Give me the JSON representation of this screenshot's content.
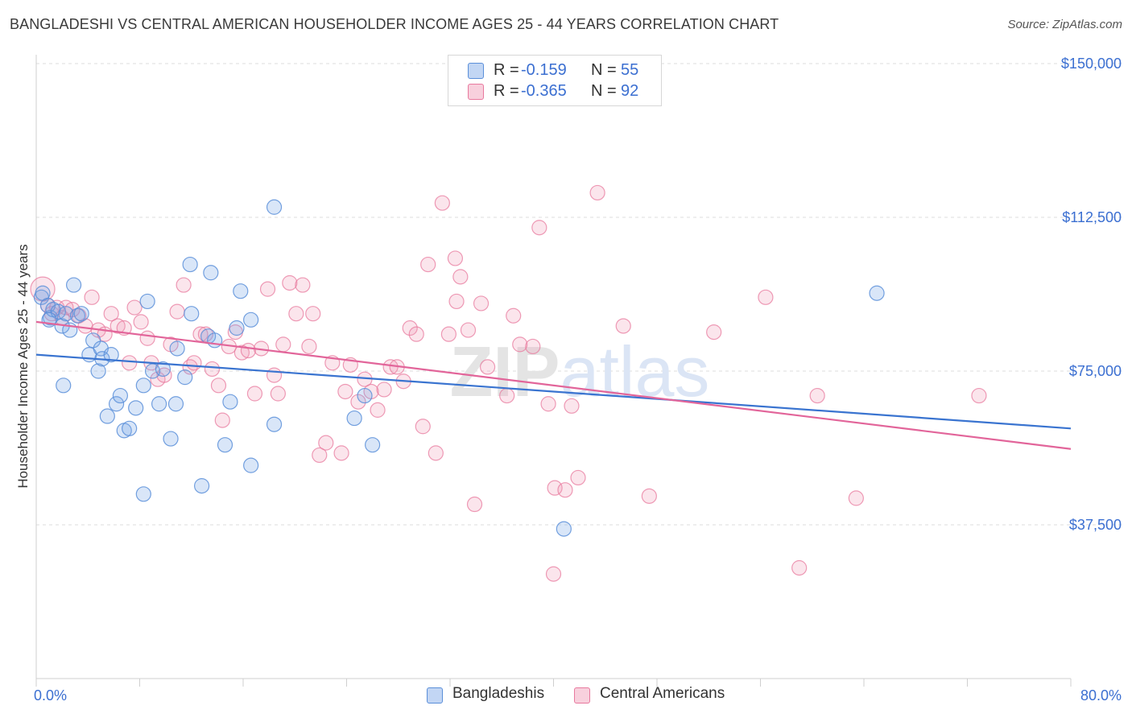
{
  "title": "BANGLADESHI VS CENTRAL AMERICAN HOUSEHOLDER INCOME AGES 25 - 44 YEARS CORRELATION CHART",
  "source": "Source: ZipAtlas.com",
  "watermark": "ZIPatlas",
  "colors": {
    "blue": "#5b8fd9",
    "blue_fill": "rgba(120,165,230,0.28)",
    "blue_line": "#3a74d0",
    "pink": "#e8799e",
    "pink_fill": "rgba(240,150,180,0.25)",
    "pink_line": "#e2659a",
    "axis_label_blue": "#3b6fd1",
    "grid": "#dddddd"
  },
  "legend": {
    "rows": [
      {
        "r_label": "R =",
        "r_value": "-0.159",
        "n_label": "N =",
        "n_value": "55"
      },
      {
        "r_label": "R =",
        "r_value": "-0.365",
        "n_label": "N =",
        "n_value": "92"
      }
    ]
  },
  "bottom_legend": {
    "items": [
      "Bangladeshis",
      "Central Americans"
    ]
  },
  "chart_data": {
    "type": "scatter",
    "xlabel": "",
    "ylabel": "Householder Income Ages 25 - 44 years",
    "xlim": [
      0,
      80
    ],
    "ylim": [
      0,
      155000
    ],
    "x_tick_labels": [
      "0.0%",
      "80.0%"
    ],
    "y_ticks": [
      37500,
      75000,
      112500,
      150000
    ],
    "y_tick_labels": [
      "$37,500",
      "$75,000",
      "$112,500",
      "$150,000"
    ],
    "grid": true,
    "legend_position": "top-center",
    "series": [
      {
        "name": "Bangladeshis",
        "trend": {
          "x": [
            0,
            80
          ],
          "y": [
            79000,
            61000
          ]
        },
        "points": [
          [
            0.4,
            93000
          ],
          [
            0.9,
            91000
          ],
          [
            1.1,
            88000
          ],
          [
            1.3,
            90000
          ],
          [
            1.7,
            89500
          ],
          [
            2.0,
            86000
          ],
          [
            2.3,
            89000
          ],
          [
            2.6,
            85000
          ],
          [
            2.9,
            96000
          ],
          [
            3.2,
            88500
          ],
          [
            3.5,
            89000
          ],
          [
            4.1,
            79000
          ],
          [
            4.4,
            82500
          ],
          [
            4.8,
            75000
          ],
          [
            5.0,
            80500
          ],
          [
            5.1,
            78000
          ],
          [
            5.8,
            79000
          ],
          [
            2.1,
            71500
          ],
          [
            5.5,
            64000
          ],
          [
            6.2,
            67000
          ],
          [
            6.5,
            69000
          ],
          [
            6.8,
            60500
          ],
          [
            7.2,
            61000
          ],
          [
            7.7,
            66000
          ],
          [
            8.3,
            71500
          ],
          [
            8.3,
            45000
          ],
          [
            8.6,
            92000
          ],
          [
            9.0,
            75000
          ],
          [
            9.5,
            67000
          ],
          [
            9.8,
            75500
          ],
          [
            10.4,
            58500
          ],
          [
            10.8,
            67000
          ],
          [
            10.9,
            80500
          ],
          [
            11.5,
            73500
          ],
          [
            11.9,
            101000
          ],
          [
            12.0,
            89000
          ],
          [
            12.8,
            47000
          ],
          [
            13.3,
            83500
          ],
          [
            13.5,
            99000
          ],
          [
            13.8,
            82500
          ],
          [
            14.6,
            57000
          ],
          [
            15.0,
            67500
          ],
          [
            15.5,
            85500
          ],
          [
            15.8,
            94500
          ],
          [
            16.6,
            87500
          ],
          [
            16.6,
            52000
          ],
          [
            18.4,
            115000
          ],
          [
            18.4,
            62000
          ],
          [
            24.6,
            63500
          ],
          [
            25.4,
            69000
          ],
          [
            26.0,
            57000
          ],
          [
            40.8,
            36500
          ],
          [
            65.0,
            94000
          ],
          [
            0.5,
            94000
          ],
          [
            1.0,
            87500
          ]
        ]
      },
      {
        "name": "Central Americans",
        "trend": {
          "x": [
            0,
            80
          ],
          "y": [
            87000,
            56000
          ]
        },
        "points": [
          [
            0.5,
            95000
          ],
          [
            0.9,
            91000
          ],
          [
            1.2,
            89000
          ],
          [
            1.6,
            90500
          ],
          [
            2.0,
            88000
          ],
          [
            2.3,
            90500
          ],
          [
            2.8,
            90000
          ],
          [
            3.3,
            88500
          ],
          [
            3.8,
            86000
          ],
          [
            4.3,
            93000
          ],
          [
            4.8,
            85000
          ],
          [
            5.3,
            84000
          ],
          [
            5.8,
            89000
          ],
          [
            6.3,
            86000
          ],
          [
            6.8,
            85500
          ],
          [
            7.2,
            77000
          ],
          [
            7.6,
            90500
          ],
          [
            8.1,
            87000
          ],
          [
            8.6,
            83000
          ],
          [
            8.9,
            77000
          ],
          [
            9.4,
            73000
          ],
          [
            9.9,
            74000
          ],
          [
            10.4,
            81500
          ],
          [
            10.9,
            89500
          ],
          [
            11.4,
            96000
          ],
          [
            11.9,
            76000
          ],
          [
            12.2,
            77000
          ],
          [
            12.7,
            84000
          ],
          [
            13.1,
            84000
          ],
          [
            13.6,
            75500
          ],
          [
            14.1,
            71500
          ],
          [
            14.4,
            63000
          ],
          [
            14.9,
            81000
          ],
          [
            15.4,
            84500
          ],
          [
            15.9,
            79500
          ],
          [
            16.4,
            80000
          ],
          [
            16.9,
            69500
          ],
          [
            17.4,
            80500
          ],
          [
            17.9,
            95000
          ],
          [
            18.4,
            74000
          ],
          [
            18.7,
            69500
          ],
          [
            19.1,
            81500
          ],
          [
            19.6,
            96500
          ],
          [
            20.1,
            89000
          ],
          [
            20.6,
            96000
          ],
          [
            21.1,
            81000
          ],
          [
            21.4,
            89000
          ],
          [
            21.9,
            54500
          ],
          [
            22.4,
            57500
          ],
          [
            22.9,
            77000
          ],
          [
            23.6,
            55000
          ],
          [
            23.9,
            70000
          ],
          [
            24.3,
            76500
          ],
          [
            24.9,
            67500
          ],
          [
            25.4,
            73000
          ],
          [
            25.9,
            70000
          ],
          [
            26.4,
            65500
          ],
          [
            26.9,
            70500
          ],
          [
            27.4,
            76000
          ],
          [
            27.9,
            76000
          ],
          [
            28.4,
            72500
          ],
          [
            28.9,
            85500
          ],
          [
            29.4,
            84000
          ],
          [
            29.9,
            61500
          ],
          [
            30.3,
            101000
          ],
          [
            30.9,
            55000
          ],
          [
            31.4,
            116000
          ],
          [
            31.9,
            84000
          ],
          [
            32.4,
            102500
          ],
          [
            32.8,
            98000
          ],
          [
            33.4,
            85000
          ],
          [
            33.9,
            42500
          ],
          [
            34.4,
            91500
          ],
          [
            34.9,
            76000
          ],
          [
            36.4,
            69000
          ],
          [
            36.9,
            88500
          ],
          [
            37.4,
            81500
          ],
          [
            38.9,
            110000
          ],
          [
            38.4,
            81000
          ],
          [
            39.6,
            67000
          ],
          [
            40.1,
            46500
          ],
          [
            40.9,
            46000
          ],
          [
            41.4,
            66500
          ],
          [
            41.9,
            49000
          ],
          [
            43.4,
            118500
          ],
          [
            45.4,
            86000
          ],
          [
            47.4,
            44500
          ],
          [
            52.4,
            84500
          ],
          [
            56.4,
            93000
          ],
          [
            60.4,
            69000
          ],
          [
            63.4,
            44000
          ],
          [
            72.9,
            69000
          ]
        ],
        "extra_points": [
          [
            32.5,
            92000
          ],
          [
            59.0,
            27000
          ],
          [
            40.0,
            25500
          ]
        ]
      }
    ]
  }
}
